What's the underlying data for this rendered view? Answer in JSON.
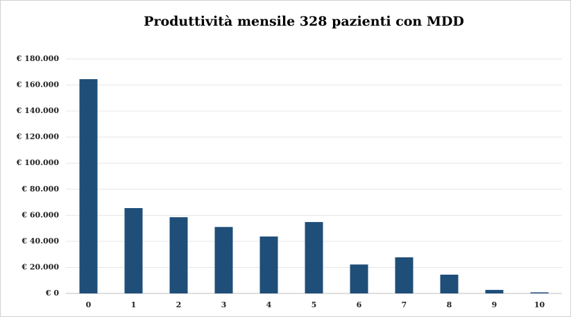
{
  "chart_data": {
    "type": "bar",
    "title": "Produttività mensile 328 pazienti con MDD",
    "categories": [
      "0",
      "1",
      "2",
      "3",
      "4",
      "5",
      "6",
      "7",
      "8",
      "9",
      "10"
    ],
    "values": [
      164500,
      65500,
      58500,
      51000,
      43700,
      54800,
      22200,
      27700,
      14400,
      2700,
      800
    ],
    "color": "#1f4e79",
    "ylim": [
      0,
      180000
    ],
    "yticks": [
      {
        "value": 0,
        "label": "€ 0"
      },
      {
        "value": 20000,
        "label": "€ 20.000"
      },
      {
        "value": 40000,
        "label": "€ 40.000"
      },
      {
        "value": 60000,
        "label": "€ 60.000"
      },
      {
        "value": 80000,
        "label": "€ 80.000"
      },
      {
        "value": 100000,
        "label": "€ 100.000"
      },
      {
        "value": 120000,
        "label": "€ 120.000"
      },
      {
        "value": 140000,
        "label": "€ 140.000"
      },
      {
        "value": 160000,
        "label": "€ 160.000"
      },
      {
        "value": 180000,
        "label": "€ 180.000"
      }
    ],
    "grid": true
  }
}
